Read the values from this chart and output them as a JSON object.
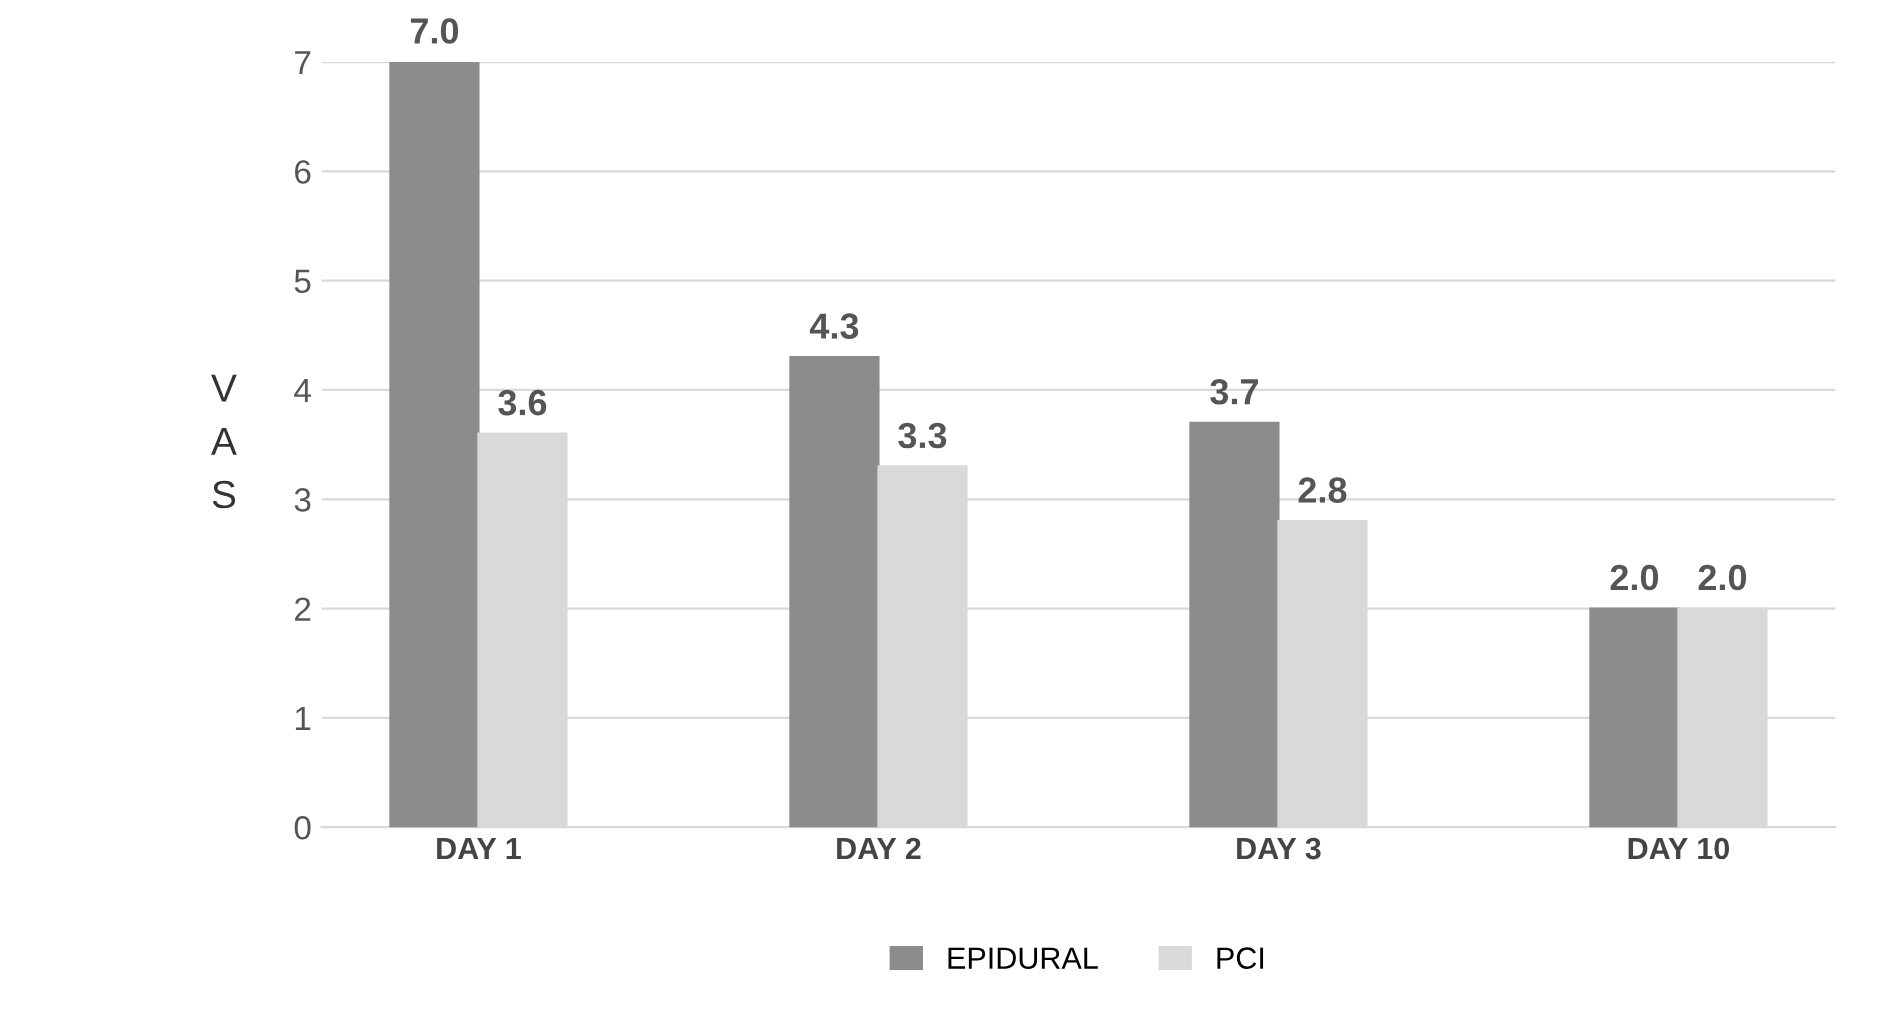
{
  "chart_data": {
    "type": "bar",
    "ylabel": "V\nA\nS",
    "categories": [
      "DAY 1",
      "DAY 2",
      "DAY 3",
      "DAY 10"
    ],
    "series": [
      {
        "name": "EPIDURAL",
        "color": "#8c8c8c",
        "values": [
          7.0,
          4.3,
          3.7,
          2.0
        ],
        "value_labels": [
          "7.0",
          "4.3",
          "3.7",
          "2.0"
        ]
      },
      {
        "name": "PCI",
        "color": "#d9d9d9",
        "values": [
          3.6,
          3.3,
          2.8,
          2.0
        ],
        "value_labels": [
          "3.6",
          "3.3",
          "2.8",
          "2.0"
        ]
      }
    ],
    "ylim": [
      0,
      7
    ],
    "yticks": [
      0,
      1,
      2,
      3,
      4,
      5,
      6,
      7
    ],
    "grid": "y",
    "legend": "bottom"
  }
}
